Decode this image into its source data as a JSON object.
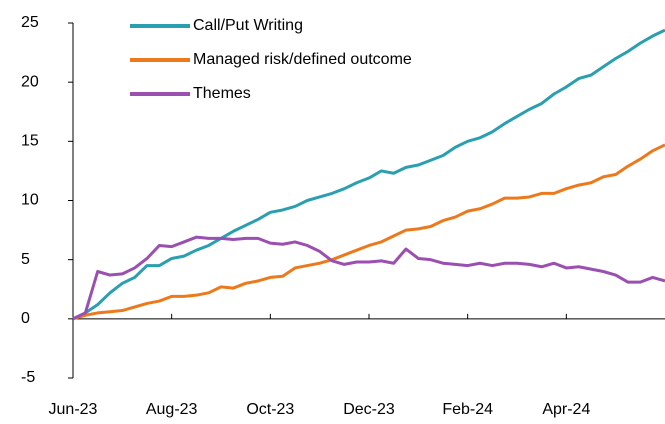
{
  "chart_data": {
    "type": "line",
    "categories": [
      "Jun-23",
      null,
      null,
      null,
      null,
      null,
      null,
      null,
      "Aug-23",
      null,
      null,
      null,
      null,
      null,
      null,
      null,
      "Oct-23",
      null,
      null,
      null,
      null,
      null,
      null,
      null,
      "Dec-23",
      null,
      null,
      null,
      null,
      null,
      null,
      null,
      "Feb-24",
      null,
      null,
      null,
      null,
      null,
      null,
      null,
      "Apr-24",
      null,
      null,
      null,
      null,
      null,
      null,
      null,
      null
    ],
    "series": [
      {
        "name": "Call/Put Writing",
        "color": "#2a9fb0",
        "values": [
          0,
          0.5,
          1.2,
          2.2,
          3,
          3.5,
          4.5,
          4.5,
          5.1,
          5.3,
          5.8,
          6.2,
          6.8,
          7.4,
          7.9,
          8.4,
          9,
          9.2,
          9.5,
          10,
          10.3,
          10.6,
          11,
          11.5,
          11.9,
          12.5,
          12.3,
          12.8,
          13,
          13.4,
          13.8,
          14.5,
          15,
          15.3,
          15.8,
          16.5,
          17.1,
          17.7,
          18.2,
          19,
          19.6,
          20.3,
          20.6,
          21.3,
          22,
          22.6,
          23.3,
          23.9,
          24.4
        ]
      },
      {
        "name": "Managed risk/defined outcome",
        "color": "#ec7a1c",
        "values": [
          0,
          0.3,
          0.5,
          0.6,
          0.7,
          1,
          1.3,
          1.5,
          1.9,
          1.9,
          2,
          2.2,
          2.7,
          2.6,
          3,
          3.2,
          3.5,
          3.6,
          4.3,
          4.5,
          4.7,
          5,
          5.4,
          5.8,
          6.2,
          6.5,
          7,
          7.5,
          7.6,
          7.8,
          8.3,
          8.6,
          9.1,
          9.3,
          9.7,
          10.2,
          10.2,
          10.3,
          10.6,
          10.6,
          11,
          11.3,
          11.5,
          12,
          12.2,
          12.9,
          13.5,
          14.2,
          14.7
        ]
      },
      {
        "name": "Themes",
        "color": "#9b4fb0",
        "values": [
          0,
          0.5,
          4,
          3.7,
          3.8,
          4.3,
          5.1,
          6.2,
          6.1,
          6.5,
          6.9,
          6.8,
          6.8,
          6.7,
          6.8,
          6.8,
          6.4,
          6.3,
          6.5,
          6.2,
          5.7,
          4.9,
          4.6,
          4.8,
          4.8,
          4.9,
          4.7,
          5.9,
          5.1,
          5,
          4.7,
          4.6,
          4.5,
          4.7,
          4.5,
          4.7,
          4.7,
          4.6,
          4.4,
          4.7,
          4.3,
          4.4,
          4.2,
          4,
          3.7,
          3.1,
          3.1,
          3.5,
          3.2
        ]
      }
    ],
    "ylim": [
      -5,
      25
    ],
    "yticks": [
      -5,
      0,
      5,
      10,
      15,
      20,
      25
    ],
    "grid": false,
    "legend": "upper left"
  }
}
